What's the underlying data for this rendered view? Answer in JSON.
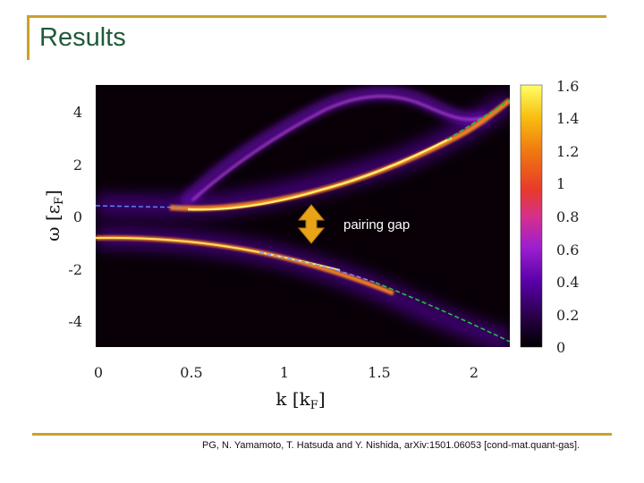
{
  "slide": {
    "title": "Results",
    "annotation": "pairing gap",
    "citation": "PG, N. Yamamoto, T. Hatsuda and Y. Nishida, arXiv:1501.06053 [cond-mat.quant-gas]."
  },
  "colors": {
    "accent_line": "#c9a227",
    "title": "#1f5a3a",
    "arrow": "#e8a317",
    "arrow_outline": "#b07a10"
  },
  "chart_data": {
    "type": "heatmap",
    "title": "",
    "xlabel": "k [k_F]",
    "ylabel": "ω [ε_F]",
    "xlim": [
      0,
      2.2
    ],
    "ylim": [
      -5,
      5
    ],
    "x_ticks": [
      "0",
      "0.5",
      "1",
      "1.5",
      "2"
    ],
    "y_ticks": [
      "4",
      "2",
      "0",
      "-2",
      "-4"
    ],
    "colorbar": {
      "min": 0,
      "max": 1.6,
      "ticks": [
        "1.6",
        "1.4",
        "1.2",
        "1",
        "0.8",
        "0.6",
        "0.4",
        "0.2",
        "0"
      ]
    }
  }
}
